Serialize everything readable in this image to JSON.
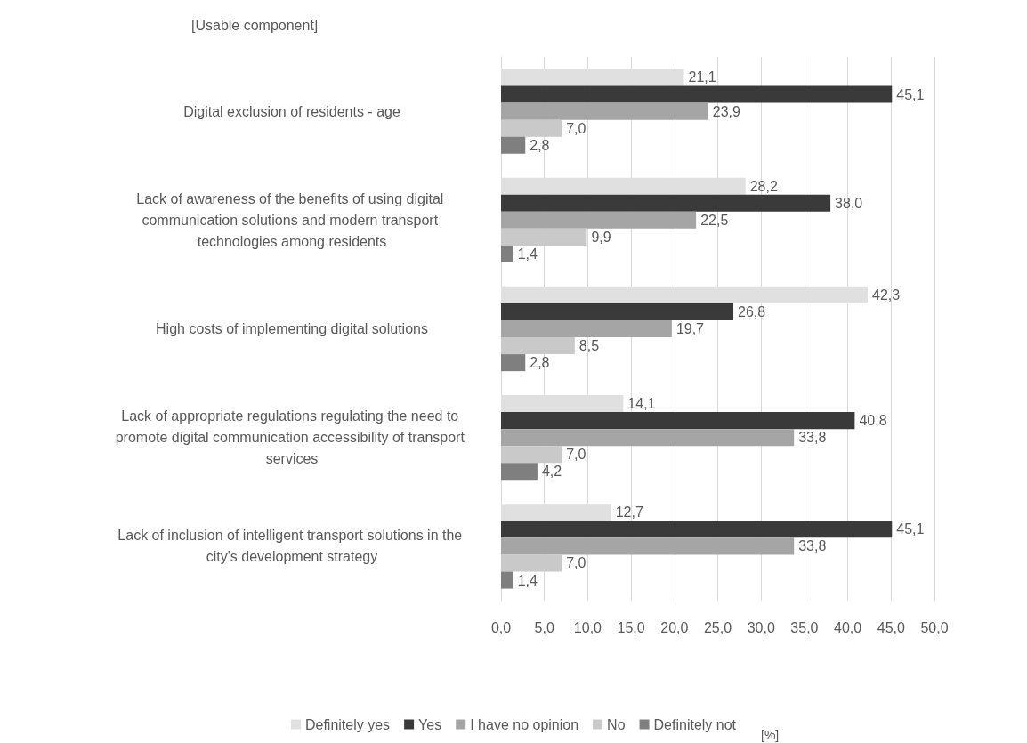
{
  "chart_data": {
    "type": "bar",
    "orientation": "horizontal",
    "ylabel": "[Usable component]",
    "annotations": [
      "[%]"
    ],
    "categories": [
      "Digital exclusion of residents - age",
      "Lack of awareness of the benefits of using digital communication solutions and modern transport technologies among residents",
      "High costs of implementing digital solutions",
      "Lack of appropriate regulations regulating the need to promote digital communication accessibility of transport services",
      "Lack of inclusion of intelligent transport solutions in the city's development strategy"
    ],
    "series": [
      {
        "name": "Definitely yes",
        "color": "#e0e0e0",
        "values": [
          21.1,
          28.2,
          42.3,
          14.1,
          12.7
        ],
        "value_labels": [
          "21,1",
          "28,2",
          "42,3",
          "14,1",
          "12,7"
        ]
      },
      {
        "name": "Yes",
        "color": "#3a3a3a",
        "values": [
          45.1,
          38.0,
          26.8,
          40.8,
          45.1
        ],
        "value_labels": [
          "45,1",
          "38,0",
          "26,8",
          "40,8",
          "45,1"
        ]
      },
      {
        "name": "I have no opinion",
        "color": "#a5a5a5",
        "values": [
          23.9,
          22.5,
          19.7,
          33.8,
          33.8
        ],
        "value_labels": [
          "23,9",
          "22,5",
          "19,7",
          "33,8",
          "33,8"
        ]
      },
      {
        "name": "No",
        "color": "#c9c9c9",
        "values": [
          7.0,
          9.9,
          8.5,
          7.0,
          7.0
        ],
        "value_labels": [
          "7,0",
          "9,9",
          "8,5",
          "7,0",
          "7,0"
        ]
      },
      {
        "name": "Definitely not",
        "color": "#7f7f7f",
        "values": [
          2.8,
          1.4,
          2.8,
          4.2,
          1.4
        ],
        "value_labels": [
          "2,8",
          "1,4",
          "2,8",
          "4,2",
          "1,4"
        ]
      }
    ],
    "xlim": [
      0,
      50
    ],
    "xticks": [
      {
        "value": 0,
        "label": "0,0"
      },
      {
        "value": 5,
        "label": "5,0"
      },
      {
        "value": 10,
        "label": "10,0"
      },
      {
        "value": 15,
        "label": "15,0"
      },
      {
        "value": 20,
        "label": "20,0"
      },
      {
        "value": 25,
        "label": "25,0"
      },
      {
        "value": 30,
        "label": "30,0"
      },
      {
        "value": 35,
        "label": "35,0"
      },
      {
        "value": 40,
        "label": "40,0"
      },
      {
        "value": 45,
        "label": "45,0"
      },
      {
        "value": 50,
        "label": "50,0"
      }
    ],
    "grid": "x",
    "legend": "bottom"
  }
}
